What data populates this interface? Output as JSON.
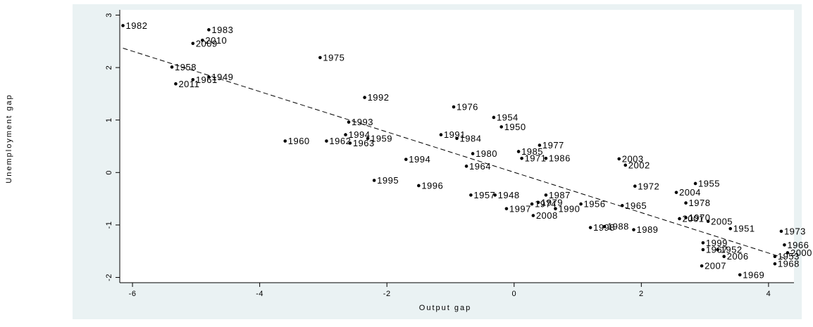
{
  "chart_data": {
    "type": "scatter",
    "title": "",
    "xlabel": "Output gap",
    "ylabel": "Unemployment gap",
    "xlim": [
      -6.2,
      4.4
    ],
    "ylim": [
      -2.1,
      3.1
    ],
    "xticks": [
      -6,
      -4,
      -2,
      0,
      2,
      4
    ],
    "yticks": [
      -2,
      -1,
      0,
      1,
      2,
      3
    ],
    "grid": false,
    "legend": "none",
    "colors": {
      "plot_background": "#ffffff",
      "outer_background": "#eaf2f3",
      "points": "#000000",
      "fit_line": "#000000"
    },
    "fit_line": {
      "style": "dashed",
      "x": [
        -6.15,
        4.3
      ],
      "y": [
        2.37,
        -1.65
      ]
    },
    "points": [
      {
        "label": "1982",
        "x": -6.15,
        "y": 2.8
      },
      {
        "label": "1983",
        "x": -4.8,
        "y": 2.72
      },
      {
        "label": "2010",
        "x": -4.9,
        "y": 2.52
      },
      {
        "label": "2009",
        "x": -5.05,
        "y": 2.46
      },
      {
        "label": "1975",
        "x": -3.05,
        "y": 2.19
      },
      {
        "label": "1958",
        "x": -5.38,
        "y": 2.01
      },
      {
        "label": "1961",
        "x": -5.05,
        "y": 1.77
      },
      {
        "label": "1949",
        "x": -4.8,
        "y": 1.82
      },
      {
        "label": "2011",
        "x": -5.32,
        "y": 1.69
      },
      {
        "label": "1992",
        "x": -2.35,
        "y": 1.43
      },
      {
        "label": "1976",
        "x": -0.95,
        "y": 1.25
      },
      {
        "label": "1954",
        "x": -0.32,
        "y": 1.05
      },
      {
        "label": "1993",
        "x": -2.6,
        "y": 0.96
      },
      {
        "label": "1950",
        "x": -0.2,
        "y": 0.87
      },
      {
        "label": "1994",
        "x": -2.65,
        "y": 0.72
      },
      {
        "label": "1991",
        "x": -1.15,
        "y": 0.72
      },
      {
        "label": "1984",
        "x": -0.9,
        "y": 0.65
      },
      {
        "label": "1959",
        "x": -2.3,
        "y": 0.65
      },
      {
        "label": "1960",
        "x": -3.6,
        "y": 0.6
      },
      {
        "label": "1962",
        "x": -2.95,
        "y": 0.6
      },
      {
        "label": "1963",
        "x": -2.58,
        "y": 0.56
      },
      {
        "label": "1977",
        "x": 0.4,
        "y": 0.52
      },
      {
        "label": "1985",
        "x": 0.07,
        "y": 0.4
      },
      {
        "label": "1980",
        "x": -0.65,
        "y": 0.36
      },
      {
        "label": "1971",
        "x": 0.12,
        "y": 0.27
      },
      {
        "label": "1986",
        "x": 0.5,
        "y": 0.27
      },
      {
        "label": "2003",
        "x": 1.65,
        "y": 0.26
      },
      {
        "label": "1994",
        "x": -1.7,
        "y": 0.25
      },
      {
        "label": "2002",
        "x": 1.75,
        "y": 0.14
      },
      {
        "label": "1964",
        "x": -0.75,
        "y": 0.12
      },
      {
        "label": "1995",
        "x": -2.2,
        "y": -0.15
      },
      {
        "label": "1955",
        "x": 2.85,
        "y": -0.21
      },
      {
        "label": "1996",
        "x": -1.5,
        "y": -0.25
      },
      {
        "label": "1972",
        "x": 1.9,
        "y": -0.26
      },
      {
        "label": "2004",
        "x": 2.55,
        "y": -0.38
      },
      {
        "label": "1957",
        "x": -0.68,
        "y": -0.43
      },
      {
        "label": "1948",
        "x": -0.3,
        "y": -0.43
      },
      {
        "label": "1987",
        "x": 0.5,
        "y": -0.43
      },
      {
        "label": "1978",
        "x": 2.7,
        "y": -0.58
      },
      {
        "label": "1974",
        "x": 0.28,
        "y": -0.6
      },
      {
        "label": "1979",
        "x": 0.38,
        "y": -0.57
      },
      {
        "label": "1956",
        "x": 1.05,
        "y": -0.6
      },
      {
        "label": "1965",
        "x": 1.7,
        "y": -0.63
      },
      {
        "label": "1990",
        "x": 0.65,
        "y": -0.69
      },
      {
        "label": "1997",
        "x": -0.12,
        "y": -0.69
      },
      {
        "label": "2008",
        "x": 0.3,
        "y": -0.82
      },
      {
        "label": "2001",
        "x": 2.6,
        "y": -0.88
      },
      {
        "label": "1970",
        "x": 2.7,
        "y": -0.86
      },
      {
        "label": "2005",
        "x": 3.05,
        "y": -0.93
      },
      {
        "label": "1998",
        "x": 1.2,
        "y": -1.05
      },
      {
        "label": "1988",
        "x": 1.42,
        "y": -1.03
      },
      {
        "label": "1951",
        "x": 3.4,
        "y": -1.07
      },
      {
        "label": "1989",
        "x": 1.88,
        "y": -1.09
      },
      {
        "label": "1973",
        "x": 4.2,
        "y": -1.12
      },
      {
        "label": "1999",
        "x": 2.97,
        "y": -1.34
      },
      {
        "label": "1966",
        "x": 4.25,
        "y": -1.38
      },
      {
        "label": "1967",
        "x": 2.97,
        "y": -1.47
      },
      {
        "label": "1952",
        "x": 3.2,
        "y": -1.47
      },
      {
        "label": "2000",
        "x": 4.3,
        "y": -1.53
      },
      {
        "label": "2006",
        "x": 3.3,
        "y": -1.6
      },
      {
        "label": "1953",
        "x": 4.1,
        "y": -1.6
      },
      {
        "label": "1968",
        "x": 4.1,
        "y": -1.74
      },
      {
        "label": "2007",
        "x": 2.95,
        "y": -1.78
      },
      {
        "label": "1969",
        "x": 3.55,
        "y": -1.95
      }
    ]
  }
}
